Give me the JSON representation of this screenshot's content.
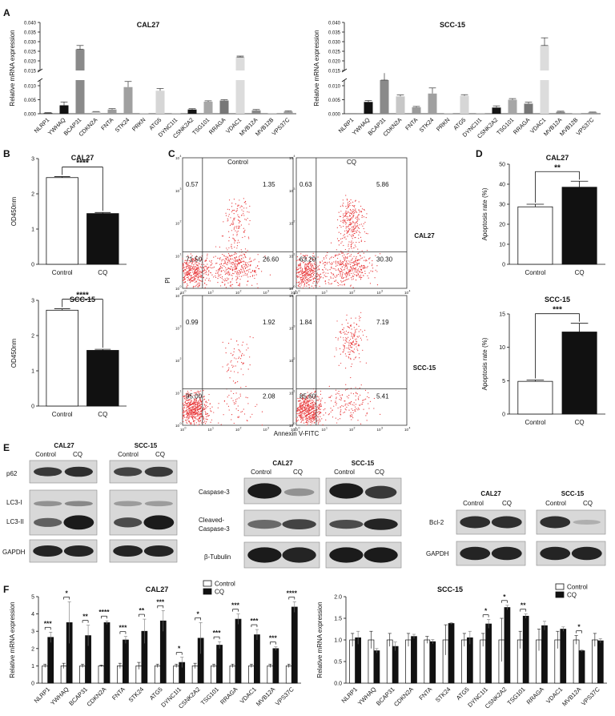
{
  "panel_letters": [
    "A",
    "B",
    "C",
    "D",
    "E",
    "F"
  ],
  "chart_data": [
    {
      "type": "bar",
      "title": "CAL27",
      "ylabel": "Relative mRNA expression",
      "categories": [
        "NLRP1",
        "YWHAQ",
        "BCAP31",
        "CDKN2A",
        "FNTA",
        "STK24",
        "PRKN",
        "ATG5",
        "DYNC1I1",
        "CSNK2A2",
        "TSG101",
        "RRAGA",
        "VDAC1",
        "MVB12A",
        "MVB12B",
        "VPS37C"
      ],
      "values": [
        0.0003,
        0.003,
        0.026,
        0.0007,
        0.0015,
        0.0095,
        0.0001,
        0.0082,
        0.0001,
        0.0015,
        0.0043,
        0.0047,
        0.022,
        0.0012,
        0.0001,
        0.0008
      ],
      "errors": [
        0.0001,
        0.0012,
        0.002,
        0.0001,
        0.0003,
        0.002,
        0.0,
        0.0008,
        0.0,
        0.0003,
        0.0003,
        0.0003,
        0.0005,
        0.0003,
        0.0,
        0.0002
      ],
      "colors": [
        "#444444",
        "#111111",
        "#8a8a8a",
        "#c7c7c7",
        "#9b9b9b",
        "#a0a0a0",
        "#cccccc",
        "#d6d6d6",
        "#bbbbbb",
        "#141414",
        "#a7a7a7",
        "#777777",
        "#dcdcdc",
        "#888888",
        "#cccccc",
        "#999999"
      ],
      "y_ticks_lower": [
        "0.000",
        "0.005",
        "0.010"
      ],
      "y_ticks_upper": [
        "0.015",
        "0.020",
        "0.025",
        "0.030",
        "0.035",
        "0.040"
      ],
      "break_between": [
        0.012,
        0.015
      ]
    },
    {
      "type": "bar",
      "title": "SCC-15",
      "ylabel": "Relative mRNA expression",
      "categories": [
        "NLRP1",
        "YWHAQ",
        "BCAP31",
        "CDKN2A",
        "FNTA",
        "STK24",
        "PRKN",
        "ATG5",
        "DYNC1I1",
        "CSNK2A2",
        "TSG101",
        "RRAGA",
        "VDAC1",
        "MVB12A",
        "MVB12B",
        "VPS37C"
      ],
      "values": [
        0.0001,
        0.0042,
        0.0145,
        0.0062,
        0.0023,
        0.0072,
        0.0001,
        0.0064,
        0.0001,
        0.0022,
        0.005,
        0.0036,
        0.028,
        0.0007,
        0.0001,
        0.0005
      ],
      "errors": [
        0.0,
        0.0005,
        0.001,
        0.0005,
        0.0003,
        0.002,
        0.0,
        0.0004,
        0.0,
        0.0006,
        0.0004,
        0.0005,
        0.004,
        0.0002,
        0.0,
        0.0001
      ],
      "colors": [
        "#444444",
        "#111111",
        "#8a8a8a",
        "#c7c7c7",
        "#9b9b9b",
        "#a0a0a0",
        "#cccccc",
        "#d6d6d6",
        "#bbbbbb",
        "#141414",
        "#a7a7a7",
        "#777777",
        "#dcdcdc",
        "#888888",
        "#cccccc",
        "#999999"
      ],
      "y_ticks_lower": [
        "0.000",
        "0.005",
        "0.010"
      ],
      "y_ticks_upper": [
        "0.015",
        "0.020",
        "0.025",
        "0.030",
        "0.035",
        "0.040"
      ],
      "break_between": [
        0.012,
        0.015
      ]
    },
    {
      "type": "bar",
      "title": "CAL27",
      "ylabel": "OD450nm",
      "categories": [
        "Control",
        "CQ"
      ],
      "values": [
        2.46,
        1.44
      ],
      "errors": [
        0.03,
        0.03
      ],
      "ylim": [
        0,
        3
      ],
      "y_ticks": [
        "0",
        "1",
        "2",
        "3"
      ],
      "significance": "****"
    },
    {
      "type": "bar",
      "title": "SCC-15",
      "ylabel": "OD450nm",
      "categories": [
        "Control",
        "CQ"
      ],
      "values": [
        2.72,
        1.58
      ],
      "errors": [
        0.04,
        0.03
      ],
      "ylim": [
        0,
        3
      ],
      "y_ticks": [
        "0",
        "1",
        "2",
        "3"
      ],
      "significance": "****"
    },
    {
      "type": "scatter",
      "xlabel": "Annexin V-FITC",
      "ylabel": "PI",
      "col_labels": [
        "Control",
        "CQ"
      ],
      "row_labels": [
        "CAL27",
        "SCC-15"
      ],
      "tick_exponents": [
        "0",
        "1",
        "2",
        "3",
        "4"
      ],
      "plots": [
        {
          "q": [
            "0.57",
            "1.35",
            "71.50",
            "26.60"
          ]
        },
        {
          "q": [
            "0.63",
            "5.86",
            "63.20",
            "30.30"
          ]
        },
        {
          "q": [
            "0.99",
            "1.92",
            "95.00",
            "2.08"
          ]
        },
        {
          "q": [
            "1.84",
            "7.19",
            "85.60",
            "5.41"
          ]
        }
      ]
    },
    {
      "type": "bar",
      "title": "CAL27",
      "ylabel": "Apoptosis rate (%)",
      "categories": [
        "Control",
        "CQ"
      ],
      "values": [
        28.7,
        38.5
      ],
      "errors": [
        1.3,
        3.0
      ],
      "ylim": [
        0,
        50
      ],
      "y_ticks": [
        "0",
        "10",
        "20",
        "30",
        "40",
        "50"
      ],
      "significance": "**"
    },
    {
      "type": "bar",
      "title": "SCC-15",
      "ylabel": "Apoptosis rate (%)",
      "categories": [
        "Control",
        "CQ"
      ],
      "values": [
        4.9,
        12.3
      ],
      "errors": [
        0.2,
        1.3
      ],
      "ylim": [
        0,
        15
      ],
      "y_ticks": [
        "0",
        "5",
        "10",
        "15"
      ],
      "significance": "***"
    },
    {
      "type": "bar",
      "title": "CAL27",
      "ylabel": "Relative mRNA expression",
      "legend": [
        "Control",
        "CQ"
      ],
      "categories": [
        "NLRP1",
        "YWHAQ",
        "BCAP31",
        "CDKN2A",
        "FNTA",
        "STK24",
        "ATG5",
        "DYNC1I1",
        "CSNK2A2",
        "TSG101",
        "RRAGA",
        "VDAC1",
        "MVB12A",
        "VPS37C"
      ],
      "series": [
        {
          "name": "Control",
          "values": [
            1,
            1,
            1,
            1,
            1,
            1,
            1,
            1,
            1,
            1,
            1,
            1,
            1,
            1
          ],
          "errors": [
            0.1,
            0.15,
            0.1,
            0.05,
            0.15,
            0.2,
            0.1,
            0.1,
            0.15,
            0.1,
            0.1,
            0.1,
            0.1,
            0.1
          ]
        },
        {
          "name": "CQ",
          "values": [
            2.65,
            3.5,
            2.75,
            3.5,
            2.5,
            3.0,
            3.6,
            1.2,
            2.6,
            2.2,
            3.7,
            2.8,
            2.0,
            4.4
          ],
          "errors": [
            0.3,
            1.2,
            0.6,
            0.1,
            0.2,
            0.7,
            0.6,
            0.3,
            0.9,
            0.2,
            0.3,
            0.3,
            0.1,
            0.3
          ]
        }
      ],
      "significance": [
        "***",
        "*",
        "**",
        "****",
        "***",
        "**",
        "***",
        "*",
        "*",
        "***",
        "***",
        "***",
        "***",
        "****"
      ],
      "ylim": [
        0,
        5
      ],
      "y_ticks": [
        "0",
        "1",
        "2",
        "3",
        "4",
        "5"
      ]
    },
    {
      "type": "bar",
      "title": "SCC-15",
      "ylabel": "Relative mRNA expression",
      "legend": [
        "Control",
        "CQ"
      ],
      "categories": [
        "NLRP1",
        "YWHAQ",
        "BCAP31",
        "CDKN2A",
        "FNTA",
        "STK24",
        "ATG5",
        "DYNC1I1",
        "CSNK2A2",
        "TSG101",
        "RRAGA",
        "VDAC1",
        "MVB12A",
        "VPS37C"
      ],
      "series": [
        {
          "name": "Control",
          "values": [
            1,
            1,
            1,
            1,
            1,
            1,
            1,
            1,
            1,
            1,
            1,
            1,
            1,
            1
          ],
          "errors": [
            0.15,
            0.2,
            0.15,
            0.15,
            0.08,
            0.35,
            0.15,
            0.15,
            0.5,
            0.2,
            0.25,
            0.2,
            0.1,
            0.15
          ]
        },
        {
          "name": "CQ",
          "values": [
            1.05,
            0.75,
            0.85,
            1.08,
            0.96,
            1.38,
            1.05,
            1.37,
            1.75,
            1.55,
            1.33,
            1.25,
            0.75,
            0.98
          ],
          "errors": [
            0.15,
            0.05,
            0.1,
            0.05,
            0.05,
            0.02,
            0.15,
            0.1,
            0.05,
            0.05,
            0.1,
            0.05,
            0.02,
            0.05
          ]
        }
      ],
      "significance": [
        "",
        "",
        "",
        "",
        "",
        "",
        "",
        "*",
        "*",
        "**",
        "",
        "",
        "*",
        ""
      ],
      "ylim": [
        0,
        2.0
      ],
      "y_ticks": [
        "0.0",
        "0.5",
        "1.0",
        "1.5",
        "2.0"
      ]
    }
  ],
  "western_blot": {
    "groups": [
      {
        "cell": "CAL27",
        "lanes": [
          "Control",
          "CQ"
        ]
      },
      {
        "cell": "SCC-15",
        "lanes": [
          "Control",
          "CQ"
        ]
      }
    ],
    "left_rows": [
      "p62",
      "LC3-I",
      "LC3-II",
      "GAPDH"
    ],
    "mid_rows": [
      "Caspase-3",
      "Cleaved-\nCaspase-3",
      "β-Tubulin"
    ],
    "mid_row_lines": [
      "Caspase-3",
      "Cleaved-",
      "Caspase-3",
      "β-Tubulin"
    ],
    "right_rows": [
      "Bcl-2",
      "GAPDH"
    ]
  }
}
